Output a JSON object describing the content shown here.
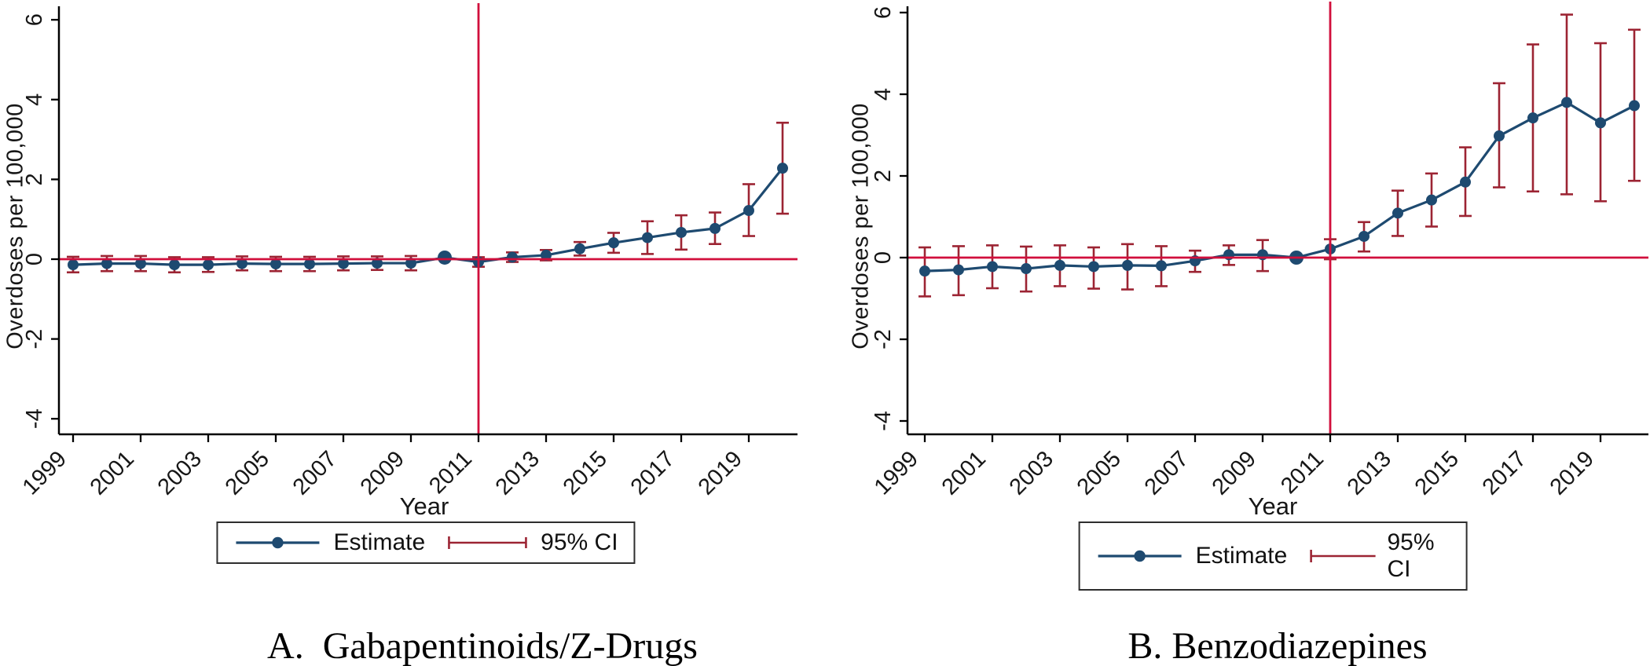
{
  "figure_title": "",
  "chart_data": [
    {
      "type": "line",
      "panel_id": "A",
      "caption": "A.  Gabapentinoids/Z-Drugs",
      "xlabel": "Year",
      "ylabel": "Overdoses per 100,000",
      "legend": [
        "Estimate",
        "95% CI"
      ],
      "legend_position": "bottom-center",
      "grid": false,
      "x_ticks": [
        1999,
        2001,
        2003,
        2005,
        2007,
        2009,
        2011,
        2013,
        2015,
        2017,
        2019
      ],
      "y_ticks": [
        6,
        4,
        2,
        0,
        -2,
        -4
      ],
      "ylim": [
        -4.4,
        6.35
      ],
      "xlim": [
        1998.6,
        2021.5
      ],
      "reference_year": 2010,
      "vline_x": 2011,
      "hline_y": 0,
      "colors": {
        "estimate": "#1e4a70",
        "ci": "#9c2433",
        "refline": "#d10f3c",
        "axis": "#000000"
      },
      "x": [
        1999,
        2000,
        2001,
        2002,
        2003,
        2004,
        2005,
        2006,
        2007,
        2008,
        2009,
        2010,
        2011,
        2012,
        2013,
        2014,
        2015,
        2016,
        2017,
        2018,
        2019,
        2020
      ],
      "estimate": [
        -0.14,
        -0.11,
        -0.11,
        -0.14,
        -0.14,
        -0.11,
        -0.12,
        -0.12,
        -0.11,
        -0.1,
        -0.1,
        0.04,
        -0.07,
        0.05,
        0.1,
        0.26,
        0.41,
        0.54,
        0.67,
        0.77,
        1.22,
        2.28
      ],
      "ci_low": [
        -0.33,
        -0.3,
        -0.3,
        -0.33,
        -0.32,
        -0.28,
        -0.3,
        -0.3,
        -0.28,
        -0.27,
        -0.28,
        null,
        -0.19,
        -0.07,
        -0.03,
        0.09,
        0.16,
        0.13,
        0.24,
        0.38,
        0.58,
        1.14
      ],
      "ci_high": [
        0.06,
        0.08,
        0.08,
        0.05,
        0.05,
        0.07,
        0.06,
        0.06,
        0.07,
        0.07,
        0.08,
        null,
        0.05,
        0.17,
        0.23,
        0.43,
        0.66,
        0.95,
        1.1,
        1.17,
        1.88,
        3.42
      ]
    },
    {
      "type": "line",
      "panel_id": "B",
      "caption": "B. Benzodiazepines",
      "xlabel": "Year",
      "ylabel": "Overdoses per 100,000",
      "legend": [
        "Estimate",
        "95% CI"
      ],
      "legend_position": "bottom-center",
      "grid": false,
      "x_ticks": [
        1999,
        2001,
        2003,
        2005,
        2007,
        2009,
        2011,
        2013,
        2015,
        2017,
        2019
      ],
      "y_ticks": [
        6,
        4,
        2,
        0,
        -2,
        -4
      ],
      "ylim": [
        -4.4,
        6.35
      ],
      "xlim": [
        1998.6,
        2021.5
      ],
      "reference_year": 2010,
      "vline_x": 2011,
      "hline_y": 0,
      "colors": {
        "estimate": "#1e4a70",
        "ci": "#9c2433",
        "refline": "#d10f3c",
        "axis": "#000000"
      },
      "x": [
        1999,
        2000,
        2001,
        2002,
        2003,
        2004,
        2005,
        2006,
        2007,
        2008,
        2009,
        2010,
        2011,
        2012,
        2013,
        2014,
        2015,
        2016,
        2017,
        2018,
        2019,
        2020
      ],
      "estimate": [
        -0.33,
        -0.3,
        -0.22,
        -0.27,
        -0.19,
        -0.22,
        -0.19,
        -0.2,
        -0.08,
        0.07,
        0.07,
        0.0,
        0.21,
        0.52,
        1.09,
        1.41,
        1.85,
        2.98,
        3.42,
        3.8,
        3.3,
        3.72
      ],
      "ci_low": [
        -0.95,
        -0.92,
        -0.75,
        -0.83,
        -0.7,
        -0.76,
        -0.78,
        -0.7,
        -0.35,
        -0.18,
        -0.33,
        null,
        -0.04,
        0.15,
        0.53,
        0.76,
        1.02,
        1.72,
        1.62,
        1.55,
        1.38,
        1.88
      ],
      "ci_high": [
        0.25,
        0.28,
        0.3,
        0.27,
        0.3,
        0.25,
        0.33,
        0.28,
        0.17,
        0.3,
        0.43,
        null,
        0.45,
        0.87,
        1.64,
        2.06,
        2.7,
        4.27,
        5.22,
        5.95,
        5.25,
        5.58
      ]
    }
  ]
}
